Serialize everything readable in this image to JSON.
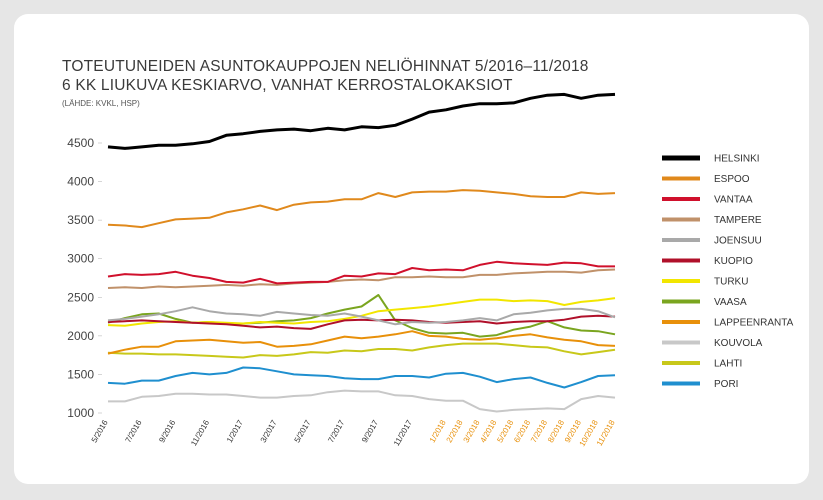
{
  "chart_data": {
    "type": "line",
    "title": "TOTEUTUNEIDEN ASUNTOKAUPPOJEN NELIÖHINNAT 5/2016–11/2018",
    "subtitle": "6 KK LIUKUVA KESKIARVO, VANHAT KERROSTALOKAKSIOT",
    "source": "(LÄHDE: KVKL, HSP)",
    "categories": [
      "5/2016",
      null,
      "7/2016",
      null,
      "9/2016",
      null,
      "11/2016",
      null,
      "1/2017",
      null,
      "3/2017",
      null,
      "5/2017",
      null,
      "7/2017",
      null,
      "9/2017",
      null,
      "11/2017",
      null,
      "1/2018",
      "2/2018",
      "3/2018",
      "4/2018",
      "5/2018",
      "6/2018",
      "7/2018",
      "8/2018",
      "9/2018",
      "10/2018",
      "11/2018"
    ],
    "highlight_from": "1/2018",
    "highlight_color": "#e8900a",
    "ylim": [
      1000,
      5300
    ],
    "yticks": [
      1000,
      1500,
      2000,
      2500,
      3000,
      3500,
      4000,
      4500
    ],
    "series": [
      {
        "name": "HELSINKI",
        "color": "#000000",
        "values": [
          4450,
          4430,
          4450,
          4470,
          4470,
          4490,
          4520,
          4600,
          4620,
          4650,
          4670,
          4680,
          4660,
          4690,
          4670,
          4710,
          4700,
          4730,
          4810,
          4900,
          4930,
          4980,
          5010,
          5010,
          5020,
          5080,
          5120,
          5130,
          5080,
          5120,
          5130
        ]
      },
      {
        "name": "ESPOO",
        "color": "#e0891c",
        "values": [
          3440,
          3430,
          3410,
          3460,
          3510,
          3520,
          3530,
          3600,
          3640,
          3690,
          3630,
          3700,
          3730,
          3740,
          3770,
          3770,
          3850,
          3800,
          3860,
          3870,
          3870,
          3890,
          3880,
          3860,
          3840,
          3810,
          3800,
          3800,
          3860,
          3840,
          3850
        ]
      },
      {
        "name": "VANTAA",
        "color": "#d0102c",
        "values": [
          2770,
          2800,
          2790,
          2800,
          2830,
          2780,
          2750,
          2700,
          2690,
          2740,
          2680,
          2690,
          2700,
          2700,
          2780,
          2770,
          2810,
          2800,
          2880,
          2850,
          2860,
          2850,
          2920,
          2960,
          2940,
          2930,
          2920,
          2950,
          2940,
          2900,
          2900
        ]
      },
      {
        "name": "TAMPERE",
        "color": "#c0916a",
        "values": [
          2620,
          2630,
          2620,
          2640,
          2630,
          2640,
          2650,
          2660,
          2650,
          2670,
          2660,
          2680,
          2690,
          2700,
          2720,
          2730,
          2720,
          2760,
          2760,
          2770,
          2760,
          2760,
          2790,
          2790,
          2810,
          2820,
          2830,
          2830,
          2820,
          2850,
          2860
        ]
      },
      {
        "name": "JOENSUU",
        "color": "#a9a9a9",
        "values": [
          2200,
          2220,
          2250,
          2280,
          2320,
          2370,
          2320,
          2290,
          2280,
          2260,
          2310,
          2290,
          2270,
          2260,
          2290,
          2250,
          2200,
          2150,
          2180,
          2170,
          2180,
          2200,
          2230,
          2200,
          2280,
          2300,
          2330,
          2350,
          2350,
          2320,
          2240
        ]
      },
      {
        "name": "KUOPIO",
        "color": "#b0102a",
        "values": [
          2180,
          2190,
          2200,
          2190,
          2180,
          2170,
          2160,
          2150,
          2130,
          2110,
          2120,
          2100,
          2090,
          2150,
          2200,
          2210,
          2200,
          2210,
          2200,
          2180,
          2170,
          2180,
          2190,
          2160,
          2180,
          2190,
          2190,
          2210,
          2250,
          2260,
          2250
        ]
      },
      {
        "name": "TURKU",
        "color": "#f2e600",
        "values": [
          2140,
          2130,
          2160,
          2180,
          2190,
          2170,
          2180,
          2170,
          2160,
          2180,
          2170,
          2160,
          2180,
          2190,
          2220,
          2260,
          2320,
          2340,
          2360,
          2380,
          2410,
          2440,
          2470,
          2470,
          2450,
          2460,
          2450,
          2400,
          2440,
          2460,
          2490
        ]
      },
      {
        "name": "VAASA",
        "color": "#7aa51f",
        "values": [
          2170,
          2230,
          2280,
          2290,
          2220,
          2170,
          2180,
          2160,
          2160,
          2170,
          2190,
          2200,
          2230,
          2290,
          2340,
          2380,
          2530,
          2200,
          2100,
          2040,
          2030,
          2040,
          1990,
          2010,
          2080,
          2120,
          2190,
          2110,
          2070,
          2060,
          2020
        ]
      },
      {
        "name": "LAPPEENRANTA",
        "color": "#e8900a",
        "values": [
          1770,
          1820,
          1860,
          1860,
          1930,
          1940,
          1950,
          1930,
          1910,
          1920,
          1860,
          1870,
          1890,
          1940,
          1990,
          1970,
          1990,
          2020,
          2060,
          2000,
          1990,
          1960,
          1950,
          1970,
          2000,
          2020,
          1980,
          1950,
          1930,
          1880,
          1870
        ]
      },
      {
        "name": "KOUVOLA",
        "color": "#c8c8c8",
        "values": [
          1150,
          1150,
          1210,
          1220,
          1250,
          1250,
          1240,
          1240,
          1220,
          1200,
          1200,
          1220,
          1230,
          1270,
          1290,
          1280,
          1280,
          1230,
          1220,
          1180,
          1160,
          1160,
          1050,
          1020,
          1040,
          1050,
          1060,
          1050,
          1180,
          1220,
          1200
        ]
      },
      {
        "name": "LAHTI",
        "color": "#c8c81a",
        "values": [
          1780,
          1770,
          1770,
          1760,
          1760,
          1750,
          1740,
          1730,
          1720,
          1750,
          1740,
          1760,
          1790,
          1780,
          1810,
          1800,
          1830,
          1830,
          1810,
          1850,
          1880,
          1900,
          1900,
          1900,
          1880,
          1860,
          1850,
          1800,
          1760,
          1790,
          1820
        ]
      },
      {
        "name": "PORI",
        "color": "#1f8fcf",
        "values": [
          1390,
          1380,
          1420,
          1420,
          1480,
          1520,
          1500,
          1520,
          1590,
          1580,
          1540,
          1500,
          1490,
          1480,
          1450,
          1440,
          1440,
          1480,
          1480,
          1460,
          1510,
          1520,
          1470,
          1400,
          1440,
          1460,
          1390,
          1330,
          1400,
          1480,
          1490
        ]
      }
    ]
  }
}
